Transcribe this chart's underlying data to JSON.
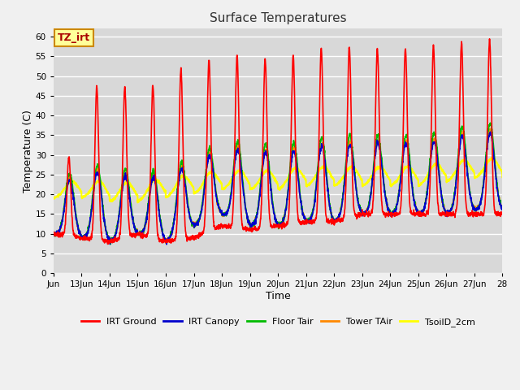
{
  "title": "Surface Temperatures",
  "xlabel": "Time",
  "ylabel": "Temperature (C)",
  "ylim": [
    0,
    62
  ],
  "yticks": [
    0,
    5,
    10,
    15,
    20,
    25,
    30,
    35,
    40,
    45,
    50,
    55,
    60
  ],
  "bg_color": "#d8d8d8",
  "fig_color": "#f0f0f0",
  "grid_color": "#c0c0c0",
  "annotation_text": "TZ_irt",
  "annotation_bg": "#ffff99",
  "annotation_border": "#cc8800",
  "annotation_text_color": "#aa0000",
  "series": {
    "IRT Ground": {
      "color": "#ff0000",
      "lw": 1.2
    },
    "IRT Canopy": {
      "color": "#0000cc",
      "lw": 1.2
    },
    "Floor Tair": {
      "color": "#00bb00",
      "lw": 1.2
    },
    "Tower TAir": {
      "color": "#ff8800",
      "lw": 1.2
    },
    "TsoilD_2cm": {
      "color": "#ffff00",
      "lw": 1.5
    }
  },
  "x_start": 12,
  "x_end": 28,
  "n_days": 16,
  "xtick_positions": [
    12,
    13,
    14,
    15,
    16,
    17,
    18,
    19,
    20,
    21,
    22,
    23,
    24,
    25,
    26,
    27,
    28
  ],
  "xtick_labels": [
    "Jun",
    "13Jun",
    "14Jun",
    "15Jun",
    "16Jun",
    "17Jun",
    "18Jun",
    "19Jun",
    "20Jun",
    "21Jun",
    "22Jun",
    "23Jun",
    "24Jun",
    "25Jun",
    "26Jun",
    "27Jun",
    "28"
  ]
}
